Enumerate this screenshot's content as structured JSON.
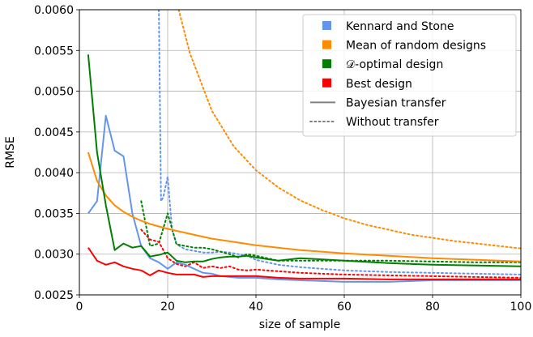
{
  "chart_data": {
    "type": "line",
    "xlabel": "size of sample",
    "ylabel": "RMSE",
    "xlim": [
      0,
      100
    ],
    "ylim": [
      0.0025,
      0.006
    ],
    "xticks": [
      0,
      20,
      40,
      60,
      80,
      100
    ],
    "yticks": [
      0.0025,
      0.003,
      0.0035,
      0.004,
      0.0045,
      0.005,
      0.0055,
      0.006
    ],
    "ytick_labels": [
      "0.0025",
      "0.0030",
      "0.0035",
      "0.0040",
      "0.0045",
      "0.0050",
      "0.0055",
      "0.0060"
    ],
    "grid": true,
    "legend_position": "top-right",
    "legend": [
      {
        "label": "Kennard and Stone",
        "marker": "square",
        "color": "#6495ed"
      },
      {
        "label": "Mean of random designs",
        "marker": "square",
        "color": "#ff8c00"
      },
      {
        "label": "𝒟-optimal design",
        "marker": "square",
        "color": "#008000"
      },
      {
        "label": "Best design",
        "marker": "square",
        "color": "#ff0000"
      },
      {
        "label": "Bayesian transfer",
        "marker": "solid-line",
        "color": "#808080"
      },
      {
        "label": "Without transfer",
        "marker": "dotted-line",
        "color": "#808080"
      }
    ],
    "series": [
      {
        "name": "Kennard and Stone",
        "style": "solid",
        "color": "#6495ed",
        "x": [
          2,
          4,
          6,
          8,
          10,
          12,
          14,
          16,
          18,
          20,
          22,
          24,
          26,
          28,
          30,
          32,
          34,
          36,
          38,
          40,
          45,
          50,
          55,
          60,
          70,
          80,
          90,
          100
        ],
        "y": [
          0.0035,
          0.00365,
          0.0047,
          0.00427,
          0.0042,
          0.0035,
          0.0031,
          0.00295,
          0.0029,
          0.00282,
          0.0029,
          0.00287,
          0.00282,
          0.00277,
          0.00276,
          0.00273,
          0.00272,
          0.00271,
          0.00271,
          0.00271,
          0.00269,
          0.00268,
          0.00267,
          0.00266,
          0.00266,
          0.00268,
          0.00268,
          0.00268
        ]
      },
      {
        "name": "Mean of random designs",
        "style": "solid",
        "color": "#ff8c00",
        "x": [
          2,
          4,
          6,
          8,
          10,
          12,
          14,
          16,
          18,
          20,
          25,
          30,
          35,
          40,
          45,
          50,
          60,
          70,
          80,
          90,
          100
        ],
        "y": [
          0.00425,
          0.0039,
          0.00372,
          0.0036,
          0.00352,
          0.00346,
          0.00341,
          0.00337,
          0.00334,
          0.00331,
          0.00325,
          0.00319,
          0.00315,
          0.00311,
          0.00308,
          0.00305,
          0.00301,
          0.00298,
          0.00295,
          0.00293,
          0.00291
        ]
      },
      {
        "name": "𝒟-optimal design",
        "style": "solid",
        "color": "#008000",
        "x": [
          2,
          4,
          6,
          8,
          10,
          12,
          14,
          16,
          18,
          20,
          22,
          24,
          26,
          28,
          30,
          32,
          34,
          36,
          38,
          40,
          45,
          50,
          60,
          70,
          80,
          90,
          100
        ],
        "y": [
          0.00545,
          0.00425,
          0.0036,
          0.00305,
          0.00313,
          0.00308,
          0.0031,
          0.00297,
          0.00299,
          0.00302,
          0.00292,
          0.0029,
          0.00291,
          0.00291,
          0.00294,
          0.00296,
          0.00297,
          0.00297,
          0.00298,
          0.00296,
          0.00292,
          0.00295,
          0.00292,
          0.00289,
          0.00287,
          0.00286,
          0.00285
        ]
      },
      {
        "name": "Best design",
        "style": "solid",
        "color": "#ff0000",
        "x": [
          2,
          4,
          6,
          8,
          10,
          12,
          14,
          16,
          18,
          20,
          22,
          24,
          26,
          28,
          30,
          32,
          34,
          36,
          38,
          40,
          45,
          50,
          60,
          70,
          80,
          90,
          100
        ],
        "y": [
          0.00308,
          0.00292,
          0.00287,
          0.0029,
          0.00285,
          0.00282,
          0.0028,
          0.00274,
          0.0028,
          0.00277,
          0.00275,
          0.00275,
          0.00275,
          0.00272,
          0.00273,
          0.00273,
          0.00273,
          0.00273,
          0.00273,
          0.00273,
          0.00271,
          0.0027,
          0.0027,
          0.00269,
          0.00269,
          0.00269,
          0.00269
        ]
      },
      {
        "name": "Kennard and Stone",
        "style": "dotted",
        "color": "#6495ed",
        "x": [
          18,
          18.5,
          19,
          20,
          21,
          22,
          24,
          26,
          28,
          30,
          32,
          34,
          36,
          38,
          40,
          45,
          50,
          55,
          60,
          70,
          80,
          90,
          100
        ],
        "y": [
          0.006,
          0.00365,
          0.0037,
          0.00395,
          0.0033,
          0.00312,
          0.00306,
          0.00304,
          0.00302,
          0.00302,
          0.00303,
          0.00302,
          0.003,
          0.00298,
          0.00293,
          0.00287,
          0.00284,
          0.00282,
          0.0028,
          0.00278,
          0.00277,
          0.00276,
          0.00275
        ]
      },
      {
        "name": "Mean of random designs",
        "style": "dotted",
        "color": "#ff8c00",
        "x": [
          22.5,
          25,
          30,
          35,
          40,
          45,
          50,
          55,
          60,
          65,
          70,
          75,
          80,
          85,
          90,
          95,
          100
        ],
        "y": [
          0.006,
          0.00547,
          0.00476,
          0.00432,
          0.00403,
          0.00382,
          0.00366,
          0.00354,
          0.00344,
          0.00336,
          0.0033,
          0.00324,
          0.0032,
          0.00316,
          0.00313,
          0.0031,
          0.00307
        ]
      },
      {
        "name": "𝒟-optimal design",
        "style": "dotted",
        "color": "#008000",
        "x": [
          14,
          16,
          18,
          20,
          22,
          24,
          26,
          28,
          30,
          32,
          34,
          36,
          38,
          40,
          45,
          50,
          60,
          70,
          80,
          90,
          100
        ],
        "y": [
          0.00365,
          0.0031,
          0.00313,
          0.0035,
          0.00312,
          0.0031,
          0.00308,
          0.00308,
          0.00306,
          0.00303,
          0.003,
          0.00296,
          0.003,
          0.00298,
          0.00292,
          0.00292,
          0.00292,
          0.00292,
          0.00291,
          0.0029,
          0.0029
        ]
      },
      {
        "name": "Best design",
        "style": "dotted",
        "color": "#ff0000",
        "x": [
          14,
          16,
          18,
          20,
          22,
          24,
          26,
          28,
          30,
          32,
          34,
          36,
          38,
          40,
          45,
          50,
          60,
          70,
          80,
          90,
          100
        ],
        "y": [
          0.0033,
          0.00318,
          0.00315,
          0.00295,
          0.00288,
          0.00285,
          0.0029,
          0.00283,
          0.00285,
          0.00283,
          0.00285,
          0.00281,
          0.0028,
          0.00281,
          0.00279,
          0.00277,
          0.00275,
          0.00274,
          0.00273,
          0.00272,
          0.00271
        ]
      }
    ]
  }
}
